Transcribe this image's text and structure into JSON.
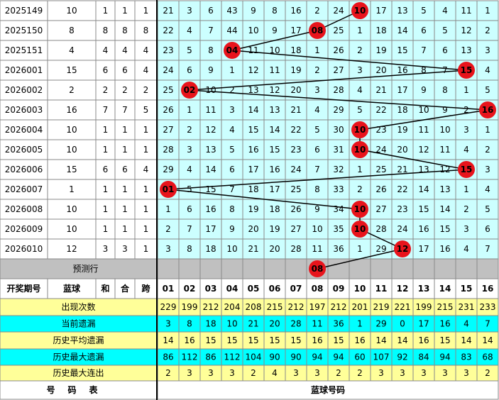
{
  "table": {
    "columns": {
      "period": "开奖期号",
      "blue": "蓝球",
      "sum": "和",
      "mod": "合",
      "span": "跨",
      "numbers": [
        "01",
        "02",
        "03",
        "04",
        "05",
        "06",
        "07",
        "08",
        "09",
        "10",
        "11",
        "12",
        "13",
        "14",
        "15",
        "16"
      ]
    },
    "rows": [
      {
        "period": "2025149",
        "blue": 10,
        "sum": 1,
        "mod": 1,
        "span": 1,
        "cells": [
          21,
          3,
          6,
          43,
          9,
          8,
          16,
          2,
          24,
          {
            "ball": "10"
          },
          17,
          13,
          5,
          4,
          11,
          1
        ]
      },
      {
        "period": "2025150",
        "blue": 8,
        "sum": 8,
        "mod": 8,
        "span": 8,
        "cells": [
          22,
          4,
          7,
          44,
          10,
          9,
          17,
          {
            "ball": "08"
          },
          25,
          1,
          18,
          14,
          6,
          5,
          12,
          2
        ]
      },
      {
        "period": "2025151",
        "blue": 4,
        "sum": 4,
        "mod": 4,
        "span": 4,
        "cells": [
          23,
          5,
          8,
          {
            "ball": "04"
          },
          11,
          10,
          18,
          1,
          26,
          2,
          19,
          15,
          7,
          6,
          13,
          3
        ]
      },
      {
        "period": "2026001",
        "blue": 15,
        "sum": 6,
        "mod": 6,
        "span": 4,
        "cells": [
          24,
          6,
          9,
          1,
          12,
          11,
          19,
          2,
          27,
          3,
          20,
          16,
          8,
          7,
          {
            "ball": "15"
          },
          4
        ]
      },
      {
        "period": "2026002",
        "blue": 2,
        "sum": 2,
        "mod": 2,
        "span": 2,
        "cells": [
          25,
          {
            "ball": "02"
          },
          10,
          2,
          13,
          12,
          20,
          3,
          28,
          4,
          21,
          17,
          9,
          8,
          1,
          5
        ]
      },
      {
        "period": "2026003",
        "blue": 16,
        "sum": 7,
        "mod": 7,
        "span": 5,
        "cells": [
          26,
          1,
          11,
          3,
          14,
          13,
          21,
          4,
          29,
          5,
          22,
          18,
          10,
          9,
          2,
          {
            "ball": "16"
          }
        ]
      },
      {
        "period": "2026004",
        "blue": 10,
        "sum": 1,
        "mod": 1,
        "span": 1,
        "cells": [
          27,
          2,
          12,
          4,
          15,
          14,
          22,
          5,
          30,
          {
            "ball": "10"
          },
          23,
          19,
          11,
          10,
          3,
          1
        ]
      },
      {
        "period": "2026005",
        "blue": 10,
        "sum": 1,
        "mod": 1,
        "span": 1,
        "cells": [
          28,
          3,
          13,
          5,
          16,
          15,
          23,
          6,
          31,
          {
            "ball": "10"
          },
          24,
          20,
          12,
          11,
          4,
          2
        ]
      },
      {
        "period": "2026006",
        "blue": 15,
        "sum": 6,
        "mod": 6,
        "span": 4,
        "cells": [
          29,
          4,
          14,
          6,
          17,
          16,
          24,
          7,
          32,
          1,
          25,
          21,
          13,
          12,
          {
            "ball": "15"
          },
          3
        ]
      },
      {
        "period": "2026007",
        "blue": 1,
        "sum": 1,
        "mod": 1,
        "span": 1,
        "cells": [
          {
            "ball": "01"
          },
          5,
          15,
          7,
          18,
          17,
          25,
          8,
          33,
          2,
          26,
          22,
          14,
          13,
          1,
          4
        ]
      },
      {
        "period": "2026008",
        "blue": 10,
        "sum": 1,
        "mod": 1,
        "span": 1,
        "cells": [
          1,
          6,
          16,
          8,
          19,
          18,
          26,
          9,
          34,
          {
            "ball": "10"
          },
          27,
          23,
          15,
          14,
          2,
          5
        ]
      },
      {
        "period": "2026009",
        "blue": 10,
        "sum": 1,
        "mod": 1,
        "span": 1,
        "cells": [
          2,
          7,
          17,
          9,
          20,
          19,
          27,
          10,
          35,
          {
            "ball": "10"
          },
          28,
          24,
          16,
          15,
          3,
          6
        ]
      },
      {
        "period": "2026010",
        "blue": 12,
        "sum": 3,
        "mod": 3,
        "span": 1,
        "cells": [
          3,
          8,
          18,
          10,
          21,
          20,
          28,
          11,
          36,
          1,
          29,
          {
            "ball": "12"
          },
          17,
          16,
          4,
          7
        ]
      }
    ],
    "prediction": {
      "label": "预测行",
      "ball": "08"
    },
    "stats": [
      {
        "label": "出现次数",
        "values": [
          229,
          199,
          212,
          204,
          208,
          215,
          212,
          197,
          212,
          201,
          219,
          221,
          199,
          215,
          231,
          233
        ]
      },
      {
        "label": "当前遗漏",
        "values": [
          3,
          8,
          18,
          10,
          21,
          20,
          28,
          11,
          36,
          1,
          29,
          0,
          17,
          16,
          4,
          7
        ]
      },
      {
        "label": "历史平均遗漏",
        "values": [
          14,
          16,
          15,
          15,
          15,
          15,
          15,
          16,
          15,
          16,
          14,
          14,
          16,
          15,
          14,
          14
        ]
      },
      {
        "label": "历史最大遗漏",
        "values": [
          86,
          112,
          86,
          112,
          104,
          90,
          90,
          94,
          94,
          60,
          107,
          92,
          84,
          94,
          83,
          68
        ]
      },
      {
        "label": "历史最大连出",
        "values": [
          2,
          3,
          3,
          3,
          2,
          4,
          3,
          3,
          2,
          2,
          3,
          3,
          3,
          3,
          3,
          2
        ]
      }
    ],
    "footer": {
      "left": "号码表",
      "right": "蓝球号码"
    }
  }
}
